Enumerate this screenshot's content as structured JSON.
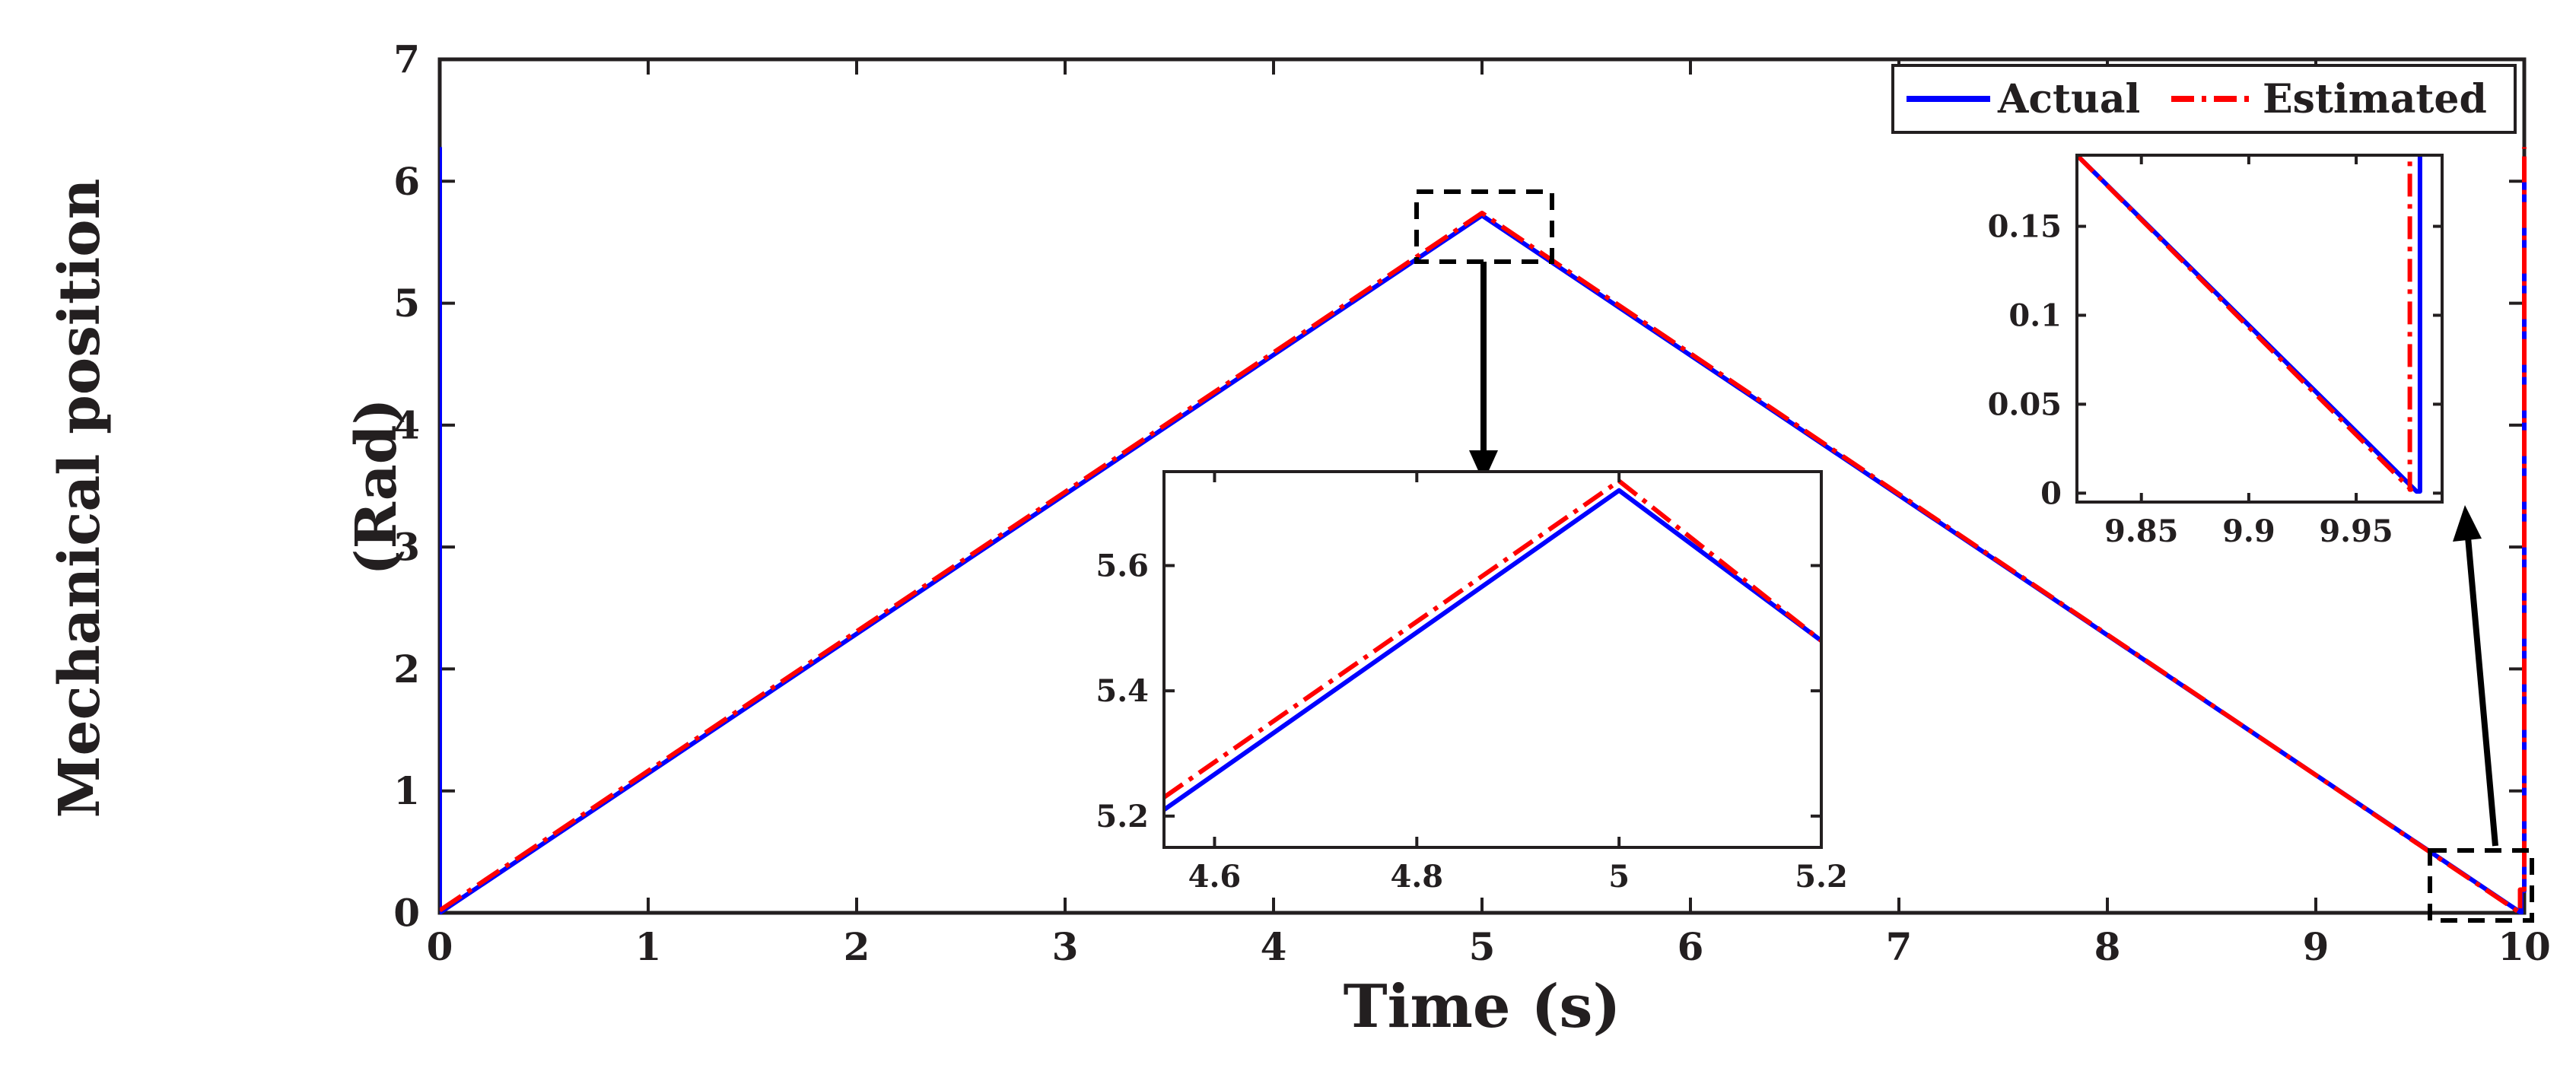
{
  "chart_data": [
    {
      "type": "line",
      "panel": "main",
      "xlabel": "Time (s)",
      "ylabel": "Mechanical position",
      "ylabel2": "(Rad)",
      "xlim": [
        0,
        10
      ],
      "ylim": [
        0,
        7
      ],
      "xticks": [
        "0",
        "1",
        "2",
        "3",
        "4",
        "5",
        "6",
        "7",
        "8",
        "9",
        "10"
      ],
      "yticks": [
        "0",
        "1",
        "2",
        "3",
        "4",
        "5",
        "6",
        "7"
      ],
      "grid": false,
      "legend": {
        "position": "top-right",
        "orientation": "horizontal"
      },
      "series": [
        {
          "name": "Actual",
          "color": "#0000ff",
          "style": "solid",
          "points": [
            [
              0,
              6.28
            ],
            [
              0,
              0
            ],
            [
              5,
              5.72
            ],
            [
              9.985,
              0
            ],
            [
              9.985,
              0.18
            ],
            [
              10,
              0.18
            ],
            [
              10,
              6.2
            ]
          ]
        },
        {
          "name": "Estimated",
          "color": "#ff0000",
          "style": "dash-dot",
          "points": [
            [
              0,
              0.02
            ],
            [
              5,
              5.74
            ],
            [
              9.98,
              0
            ],
            [
              9.98,
              0.19
            ],
            [
              10,
              0.19
            ],
            [
              10,
              6.28
            ]
          ]
        }
      ]
    },
    {
      "type": "line",
      "panel": "inset-peak",
      "xlim": [
        4.55,
        5.2
      ],
      "ylim": [
        5.15,
        5.75
      ],
      "xticks": [
        "4.6",
        "4.8",
        "5",
        "5.2"
      ],
      "yticks": [
        "5.2",
        "5.4",
        "5.6"
      ],
      "series": [
        {
          "name": "Actual",
          "color": "#0000ff",
          "points": [
            [
              4.55,
              5.21
            ],
            [
              5,
              5.72
            ],
            [
              5.2,
              5.48
            ]
          ]
        },
        {
          "name": "Estimated",
          "color": "#ff0000",
          "points": [
            [
              4.55,
              5.23
            ],
            [
              5,
              5.735
            ],
            [
              5.2,
              5.48
            ]
          ]
        }
      ]
    },
    {
      "type": "line",
      "panel": "inset-end",
      "xlim": [
        9.82,
        9.99
      ],
      "ylim": [
        -0.005,
        0.19
      ],
      "xticks": [
        "9.85",
        "9.9",
        "9.95"
      ],
      "yticks": [
        "0",
        "0.05",
        "0.1",
        "0.15"
      ],
      "series": [
        {
          "name": "Actual",
          "color": "#0000ff",
          "points": [
            [
              9.82,
              0.19
            ],
            [
              9.9781,
              0.001
            ],
            [
              9.9797,
              0.001
            ],
            [
              9.9797,
              0.19
            ]
          ]
        },
        {
          "name": "Estimated",
          "color": "#ff0000",
          "points": [
            [
              9.82,
              0.19
            ],
            [
              9.9755,
              0.002
            ],
            [
              9.975,
              0.002
            ],
            [
              9.975,
              0.19
            ]
          ]
        }
      ]
    }
  ]
}
